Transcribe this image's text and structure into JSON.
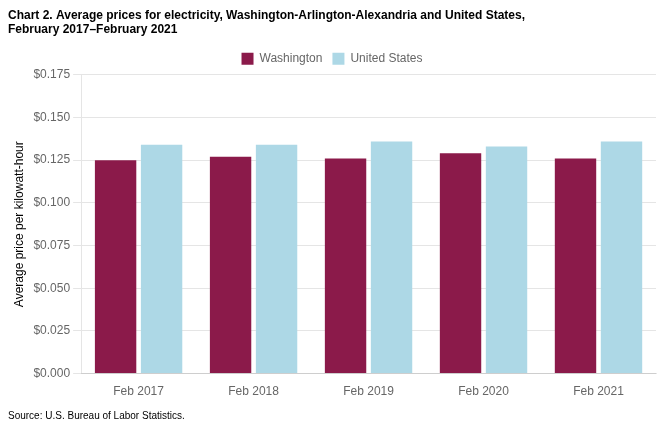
{
  "chart_data": {
    "type": "bar",
    "title": [
      "Chart 2. Average prices for electricity, Washington-Arlington-Alexandria and United States,",
      "February 2017–February 2021"
    ],
    "ylabel": "Average price per kilowatt-hour",
    "annotations": [
      "Source: U.S. Bureau of Labor Statistics."
    ],
    "categories": [
      "Feb 2017",
      "Feb 2018",
      "Feb 2019",
      "Feb 2020",
      "Feb 2021"
    ],
    "series": [
      {
        "name": "Washington",
        "color": "#8B1A4A",
        "values": [
          0.125,
          0.127,
          0.126,
          0.129,
          0.126
        ]
      },
      {
        "name": "United States",
        "color": "#ADD8E6",
        "values": [
          0.134,
          0.134,
          0.136,
          0.133,
          0.136
        ]
      }
    ],
    "ylim": [
      0,
      0.175
    ],
    "yticks": [
      {
        "value": 0.0,
        "label": "$0.000"
      },
      {
        "value": 0.025,
        "label": "$0.025"
      },
      {
        "value": 0.05,
        "label": "$0.050"
      },
      {
        "value": 0.075,
        "label": "$0.075"
      },
      {
        "value": 0.1,
        "label": "$0.100"
      },
      {
        "value": 0.125,
        "label": "$0.125"
      },
      {
        "value": 0.15,
        "label": "$0.150"
      },
      {
        "value": 0.175,
        "label": "$0.175"
      }
    ],
    "grid": true,
    "legend": "top"
  }
}
